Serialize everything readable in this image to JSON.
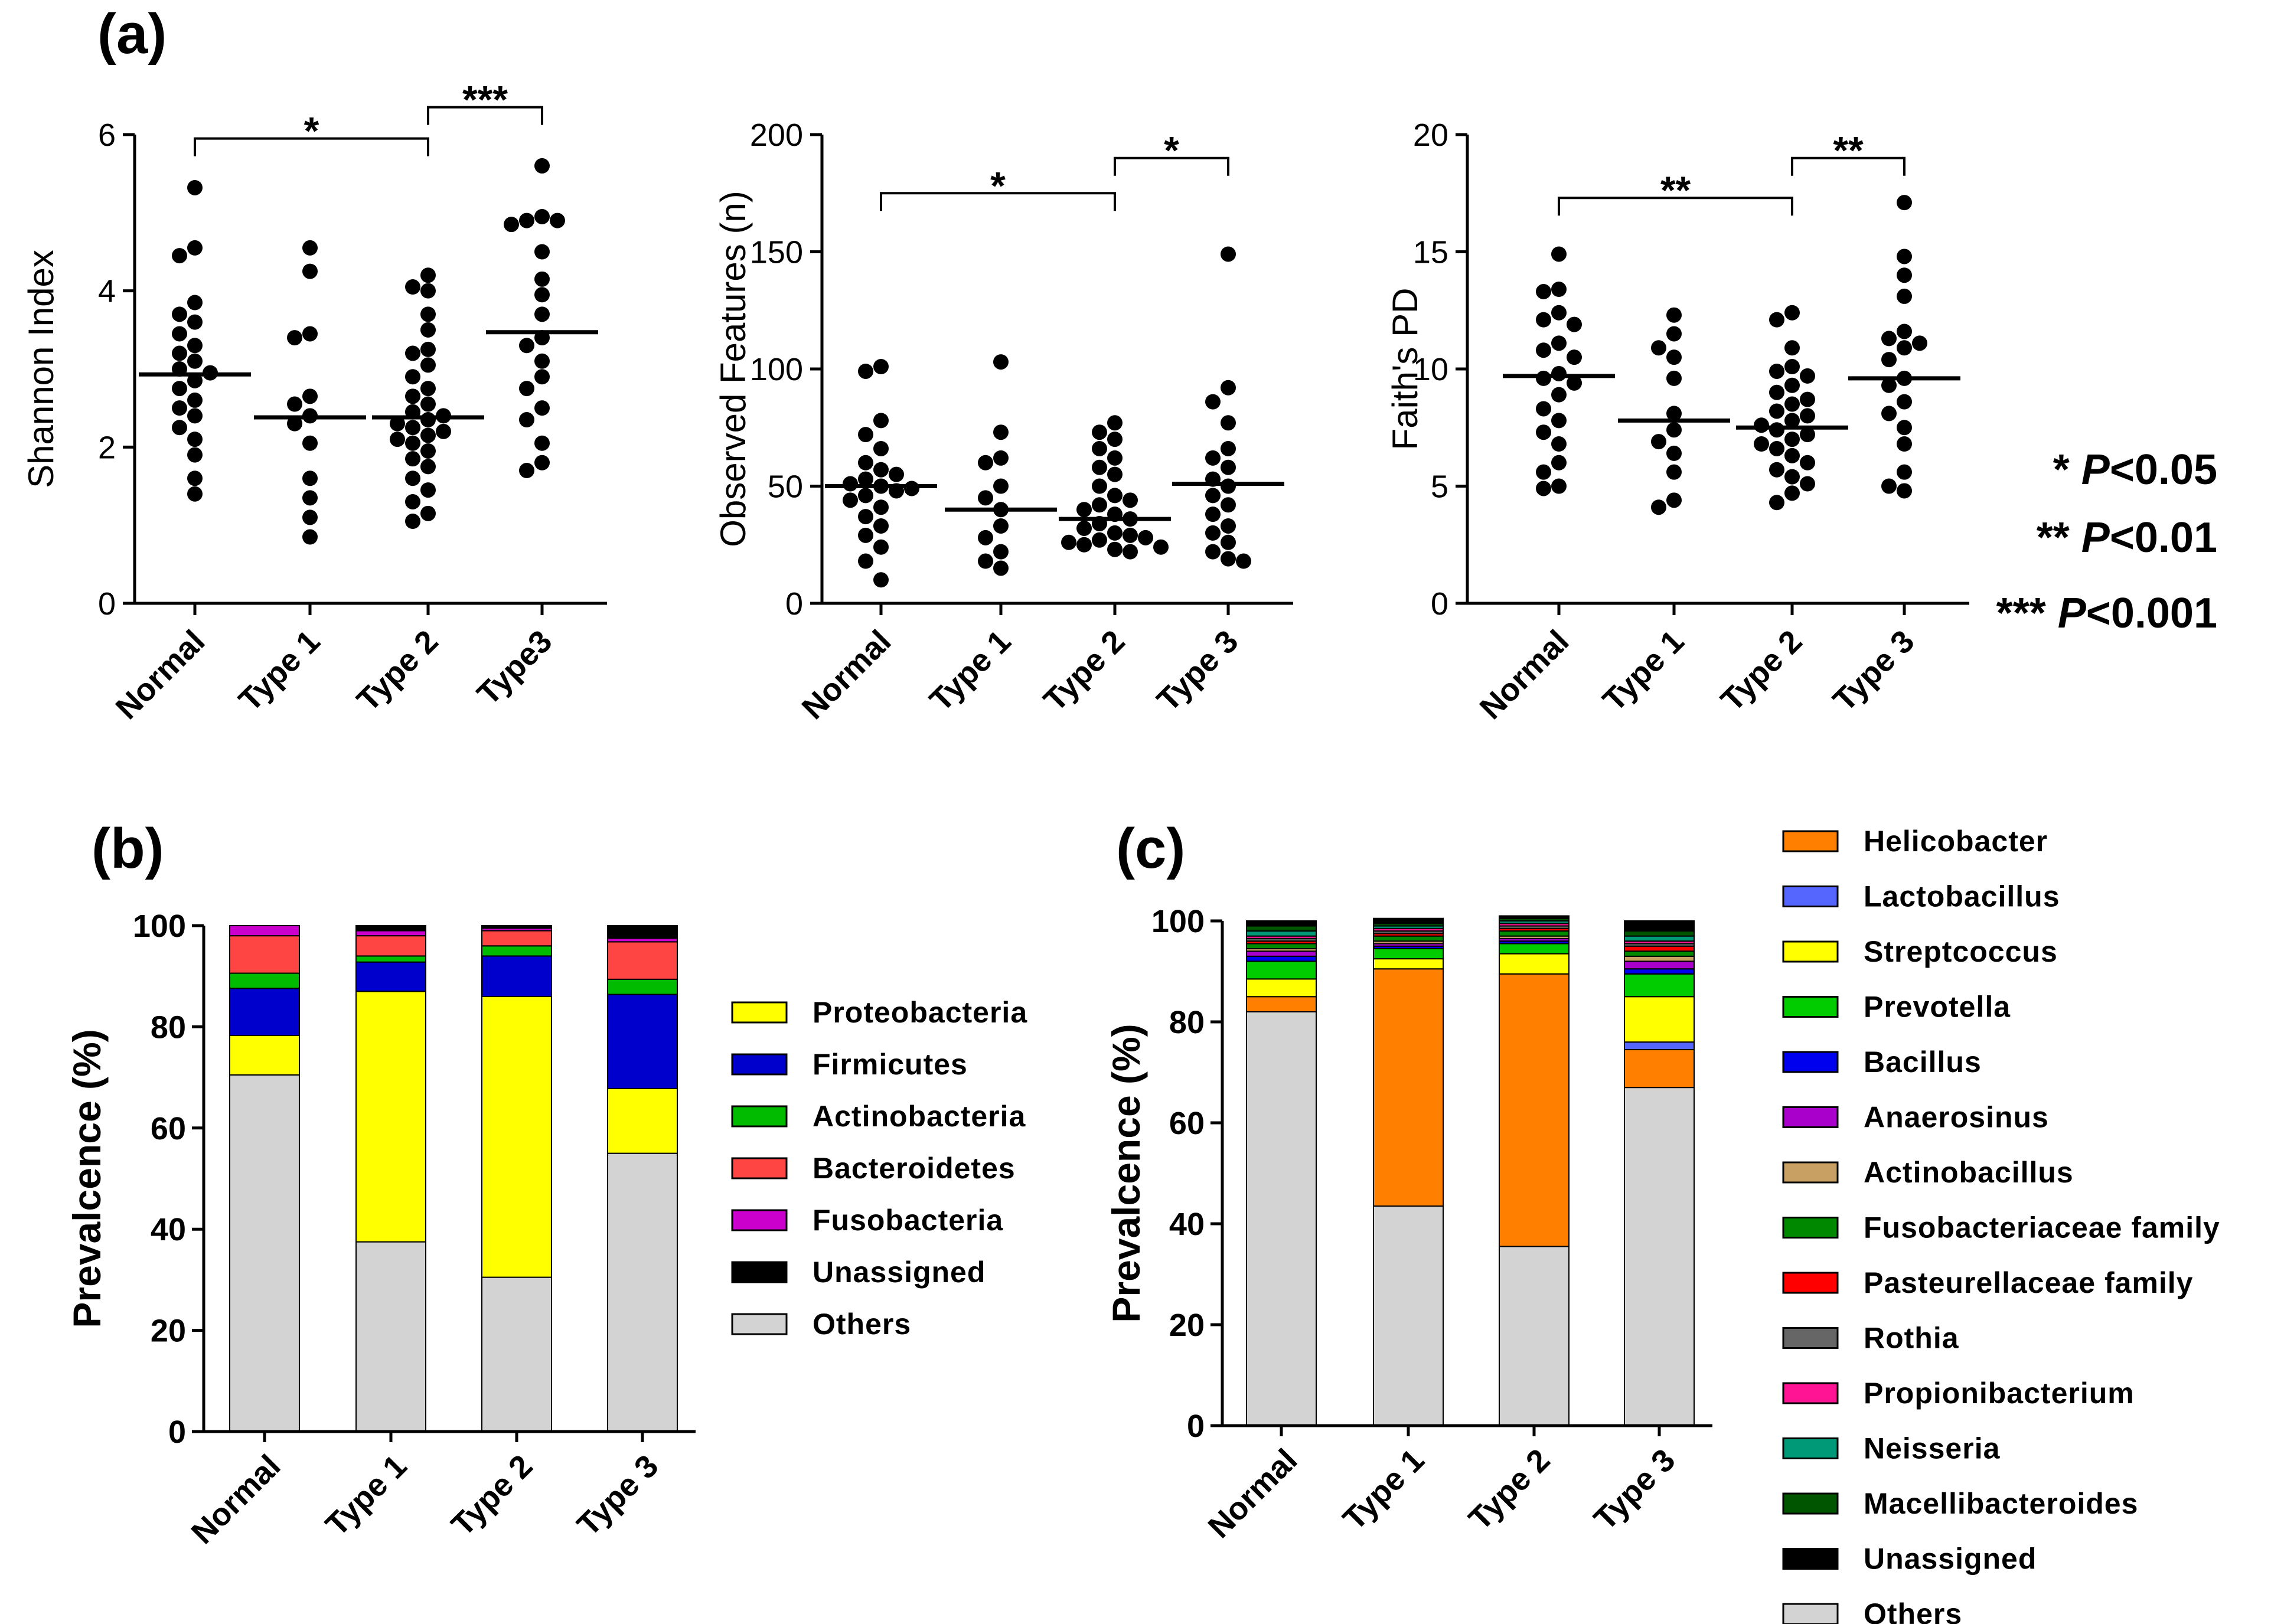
{
  "panel_labels": {
    "a": "(a)",
    "b": "(b)",
    "c": "(c)"
  },
  "significance_legend": [
    {
      "stars": "*",
      "p_italic": "P",
      "threshold": "<0.05"
    },
    {
      "stars": "**",
      "p_italic": "P",
      "threshold": "<0.01"
    },
    {
      "stars": "***",
      "p_italic": "P",
      "threshold": "<0.001"
    }
  ],
  "chart_data": [
    {
      "type": "scatter",
      "ylabel": "Shannon Index",
      "categories": [
        "Normal",
        "Type 1",
        "Type 2",
        "Type3"
      ],
      "ylim": [
        0,
        6
      ],
      "yticks": [
        "0",
        "2",
        "4",
        "6"
      ],
      "means": [
        2.93,
        2.38,
        2.38,
        3.47
      ],
      "points": [
        [
          5.32,
          4.55,
          4.45,
          3.85,
          3.7,
          3.6,
          3.45,
          3.3,
          3.2,
          3.1,
          3.0,
          2.95,
          2.85,
          2.75,
          2.6,
          2.5,
          2.4,
          2.25,
          2.1,
          1.9,
          1.6,
          1.4
        ],
        [
          4.55,
          4.25,
          3.45,
          3.4,
          2.65,
          2.55,
          2.4,
          2.3,
          2.05,
          1.6,
          1.35,
          1.1,
          0.85
        ],
        [
          4.2,
          4.05,
          4.0,
          3.7,
          3.5,
          3.25,
          3.2,
          3.05,
          2.9,
          2.75,
          2.65,
          2.55,
          2.45,
          2.4,
          2.35,
          2.3,
          2.25,
          2.2,
          2.15,
          2.1,
          2.05,
          1.95,
          1.85,
          1.75,
          1.6,
          1.45,
          1.3,
          1.15,
          1.05
        ],
        [
          5.6,
          4.95,
          4.9,
          4.9,
          4.85,
          4.5,
          4.15,
          3.95,
          3.7,
          3.4,
          3.3,
          3.1,
          2.9,
          2.75,
          2.5,
          2.35,
          2.05,
          1.8,
          1.7
        ]
      ],
      "brackets": [
        {
          "from": 0,
          "to": 2,
          "label": "*",
          "level": 5.95
        },
        {
          "from": 2,
          "to": 3,
          "label": "***",
          "level": 6.35
        }
      ]
    },
    {
      "type": "scatter",
      "ylabel": "Observed Features (n)",
      "categories": [
        "Normal",
        "Type 1",
        "Type 2",
        "Type 3"
      ],
      "ylim": [
        0,
        200
      ],
      "yticks": [
        "0",
        "50",
        "100",
        "150",
        "200"
      ],
      "means": [
        50,
        40,
        36,
        51
      ],
      "points": [
        [
          101,
          99,
          78,
          72,
          66,
          60,
          57,
          55,
          53,
          51,
          50,
          49,
          48,
          46,
          44,
          41,
          37,
          33,
          29,
          24,
          18,
          10
        ],
        [
          103,
          73,
          62,
          60,
          50,
          45,
          40,
          33,
          28,
          22,
          18,
          15
        ],
        [
          77,
          73,
          70,
          66,
          62,
          58,
          55,
          50,
          46,
          44,
          42,
          40,
          38,
          36,
          34,
          32,
          30,
          29,
          28,
          27,
          26,
          25,
          24,
          23,
          22
        ],
        [
          149,
          92,
          86,
          77,
          66,
          62,
          58,
          53,
          50,
          46,
          42,
          38,
          33,
          30,
          26,
          22,
          19,
          18
        ]
      ],
      "brackets": [
        {
          "from": 0,
          "to": 2,
          "label": "*",
          "level": 175
        },
        {
          "from": 2,
          "to": 3,
          "label": "*",
          "level": 190
        }
      ]
    },
    {
      "type": "scatter",
      "ylabel": "Faith's PD",
      "categories": [
        "Normal",
        "Type 1",
        "Type 2",
        "Type 3"
      ],
      "ylim": [
        0,
        20
      ],
      "yticks": [
        "0",
        "5",
        "10",
        "15",
        "20"
      ],
      "means": [
        9.7,
        7.8,
        7.5,
        9.6
      ],
      "points": [
        [
          14.9,
          13.4,
          13.3,
          12.4,
          12.1,
          11.9,
          11.1,
          10.8,
          10.5,
          9.8,
          9.6,
          9.4,
          8.9,
          8.3,
          7.8,
          7.3,
          6.8,
          6.0,
          5.6,
          5.0,
          4.9
        ],
        [
          12.3,
          11.5,
          10.9,
          10.5,
          9.6,
          8.1,
          7.4,
          6.9,
          6.4,
          5.6,
          4.4,
          4.1
        ],
        [
          12.4,
          12.1,
          10.9,
          10.1,
          9.9,
          9.7,
          9.3,
          9.0,
          8.7,
          8.5,
          8.2,
          8.0,
          7.8,
          7.6,
          7.4,
          7.2,
          7.0,
          6.8,
          6.6,
          6.3,
          6.0,
          5.7,
          5.4,
          5.1,
          4.7,
          4.3
        ],
        [
          17.1,
          14.8,
          14.0,
          13.1,
          11.6,
          11.3,
          11.1,
          10.9,
          10.4,
          9.6,
          9.3,
          8.6,
          8.1,
          7.5,
          6.8,
          5.6,
          5.0,
          4.8
        ]
      ],
      "brackets": [
        {
          "from": 0,
          "to": 2,
          "label": "**",
          "level": 17.3
        },
        {
          "from": 2,
          "to": 3,
          "label": "**",
          "level": 19.0
        }
      ]
    },
    {
      "type": "bar",
      "stacked": true,
      "ylabel": "Prevalcence (%)",
      "categories": [
        "Normal",
        "Type 1",
        "Type 2",
        "Type 3"
      ],
      "ylim": [
        0,
        100
      ],
      "yticks": [
        "0",
        "20",
        "40",
        "60",
        "80",
        "100"
      ],
      "series": [
        {
          "name": "Others",
          "color": "#d3d3d3",
          "values": [
            70.5,
            37.5,
            30.5,
            55.0
          ]
        },
        {
          "name": "Proteobacteria",
          "color": "#ffff00",
          "values": [
            7.8,
            49.5,
            55.5,
            12.8
          ]
        },
        {
          "name": "Firmicutes",
          "color": "#0000cc",
          "values": [
            9.3,
            5.8,
            8.0,
            18.6
          ]
        },
        {
          "name": "Actinobacteria",
          "color": "#00bb00",
          "values": [
            3.0,
            1.2,
            2.0,
            3.0
          ]
        },
        {
          "name": "Bacteroidetes",
          "color": "#ff4444",
          "values": [
            7.4,
            4.0,
            3.0,
            7.4
          ]
        },
        {
          "name": "Fusobacteria",
          "color": "#cc00cc",
          "values": [
            2.0,
            1.0,
            0.5,
            0.7
          ]
        },
        {
          "name": "Unassigned",
          "color": "#000000",
          "values": [
            0.0,
            1.0,
            0.5,
            2.5
          ]
        }
      ],
      "legend": [
        "Proteobacteria",
        "Firmicutes",
        "Actinobacteria",
        "Bacteroidetes",
        "Fusobacteria",
        "Unassigned",
        "Others"
      ],
      "legend_position": "right"
    },
    {
      "type": "bar",
      "stacked": true,
      "ylabel": "Prevalcence (%)",
      "categories": [
        "Normal",
        "Type 1",
        "Type 2",
        "Type 3"
      ],
      "ylim": [
        0,
        100
      ],
      "yticks": [
        "0",
        "20",
        "40",
        "60",
        "80",
        "100"
      ],
      "series": [
        {
          "name": "Others",
          "color": "#d3d3d3",
          "values": [
            82.0,
            43.5,
            35.5,
            67.0
          ]
        },
        {
          "name": "Helicobacter",
          "color": "#ff8000",
          "values": [
            3.0,
            47.0,
            54.0,
            7.5
          ]
        },
        {
          "name": "Lactobacillus",
          "color": "#5566ff",
          "values": [
            0.0,
            0.0,
            0.0,
            1.5
          ]
        },
        {
          "name": "Streptcoccus",
          "color": "#ffff00",
          "values": [
            3.5,
            2.0,
            4.0,
            9.0
          ]
        },
        {
          "name": "Prevotella",
          "color": "#00cc00",
          "values": [
            3.5,
            2.0,
            2.0,
            4.5
          ]
        },
        {
          "name": "Bacillus",
          "color": "#0000ee",
          "values": [
            1.0,
            0.5,
            0.5,
            1.0
          ]
        },
        {
          "name": "Anaerosinus",
          "color": "#aa00cc",
          "values": [
            1.0,
            0.5,
            0.5,
            1.5
          ]
        },
        {
          "name": "Actinobacillus",
          "color": "#c8a064",
          "values": [
            0.5,
            0.5,
            0.5,
            1.0
          ]
        },
        {
          "name": "Fusobacteriaceae family",
          "color": "#008800",
          "values": [
            1.0,
            1.0,
            1.0,
            1.0
          ]
        },
        {
          "name": "Pasteurellaceae family",
          "color": "#ff0000",
          "values": [
            0.5,
            0.5,
            0.5,
            1.0
          ]
        },
        {
          "name": "Rothia",
          "color": "#666666",
          "values": [
            0.5,
            0.5,
            0.5,
            0.5
          ]
        },
        {
          "name": "Propionibacterium",
          "color": "#ff1493",
          "values": [
            0.5,
            0.5,
            0.5,
            0.5
          ]
        },
        {
          "name": "Neisseria",
          "color": "#009977",
          "values": [
            1.0,
            0.5,
            0.5,
            1.0
          ]
        },
        {
          "name": "Macellibacteroides",
          "color": "#005500",
          "values": [
            1.0,
            0.5,
            0.5,
            1.0
          ]
        },
        {
          "name": "Unassigned",
          "color": "#000000",
          "values": [
            1.0,
            1.0,
            0.5,
            2.0
          ]
        }
      ],
      "legend": [
        "Helicobacter",
        "Lactobacillus",
        "Streptcoccus",
        "Prevotella",
        "Bacillus",
        "Anaerosinus",
        "Actinobacillus",
        "Fusobacteriaceae family",
        "Pasteurellaceae family",
        "Rothia",
        "Propionibacterium",
        "Neisseria",
        "Macellibacteroides",
        "Unassigned",
        "Others"
      ],
      "legend_position": "right"
    }
  ]
}
